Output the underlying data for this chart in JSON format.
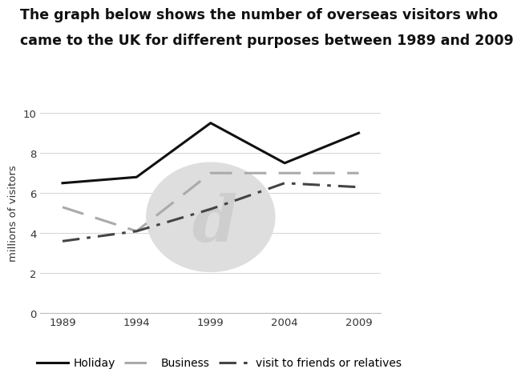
{
  "title_line1": "The graph below shows the number of overseas visitors who",
  "title_line2": "came to the UK for different purposes between 1989 and 2009",
  "ylabel": "millions of visitors",
  "years": [
    1989,
    1994,
    1999,
    2004,
    2009
  ],
  "holiday": [
    6.5,
    6.8,
    9.5,
    7.5,
    9.0
  ],
  "business": [
    5.3,
    4.1,
    7.0,
    7.0,
    7.0
  ],
  "friends": [
    3.6,
    4.1,
    5.2,
    6.5,
    6.3
  ],
  "ylim": [
    0,
    10
  ],
  "yticks": [
    0,
    2,
    4,
    6,
    8,
    10
  ],
  "xticks": [
    1989,
    1994,
    1999,
    2004,
    2009
  ],
  "holiday_color": "#111111",
  "business_color": "#aaaaaa",
  "friends_color": "#444444",
  "bg_color": "#ffffff",
  "title_fontsize": 12.5,
  "axis_fontsize": 9.5,
  "legend_fontsize": 10,
  "watermark_color": "#dedede",
  "watermark_inner": "#cccccc"
}
